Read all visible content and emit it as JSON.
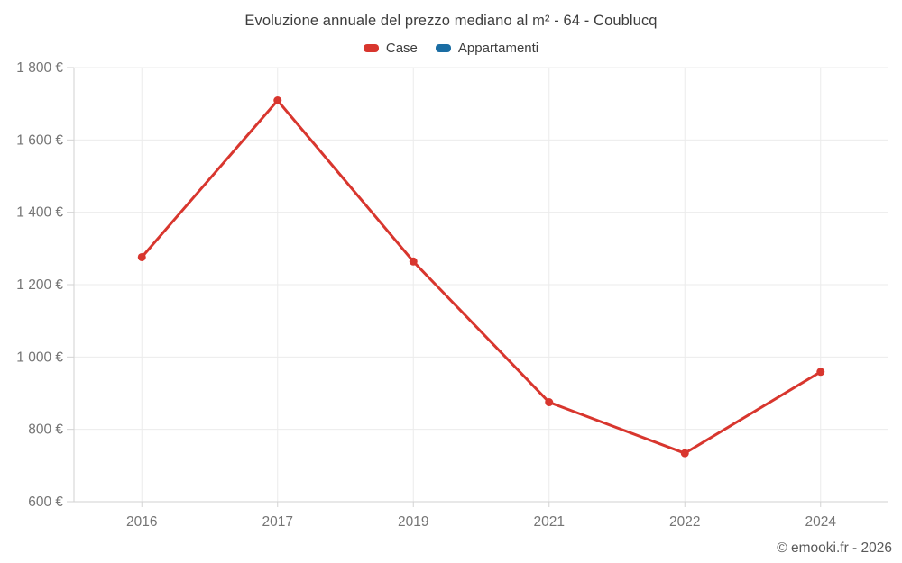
{
  "footer": {
    "credit": "© emooki.fr - 2026"
  },
  "colors": {
    "case_red": "#d8362e",
    "appartamenti_blue": "#1a6da3",
    "grid": "#ebebeb",
    "axis": "#d2d2d2",
    "tick_label": "#757575",
    "title_text": "#3d3d3d",
    "footer_text": "#595959",
    "background": "#ffffff"
  },
  "chart_data": {
    "type": "line",
    "title": "Evoluzione annuale del prezzo mediano al m² - 64 - Coublucq",
    "categories": [
      "2016",
      "2017",
      "2019",
      "2021",
      "2022",
      "2024"
    ],
    "series": [
      {
        "name": "Case",
        "color": "#d8362e",
        "values": [
          1276,
          1709,
          1264,
          875,
          734,
          959
        ]
      },
      {
        "name": "Appartamenti",
        "color": "#1a6da3",
        "values": []
      }
    ],
    "xlabel": "",
    "ylabel": "",
    "ylim": [
      600,
      1800
    ],
    "yticks": {
      "values": [
        600,
        800,
        1000,
        1200,
        1400,
        1600,
        1800
      ],
      "labels": [
        "600 €",
        "800 €",
        "1 000 €",
        "1 200 €",
        "1 400 €",
        "1 600 €",
        "1 800 €"
      ]
    },
    "grid": true,
    "legend_position": "top"
  }
}
